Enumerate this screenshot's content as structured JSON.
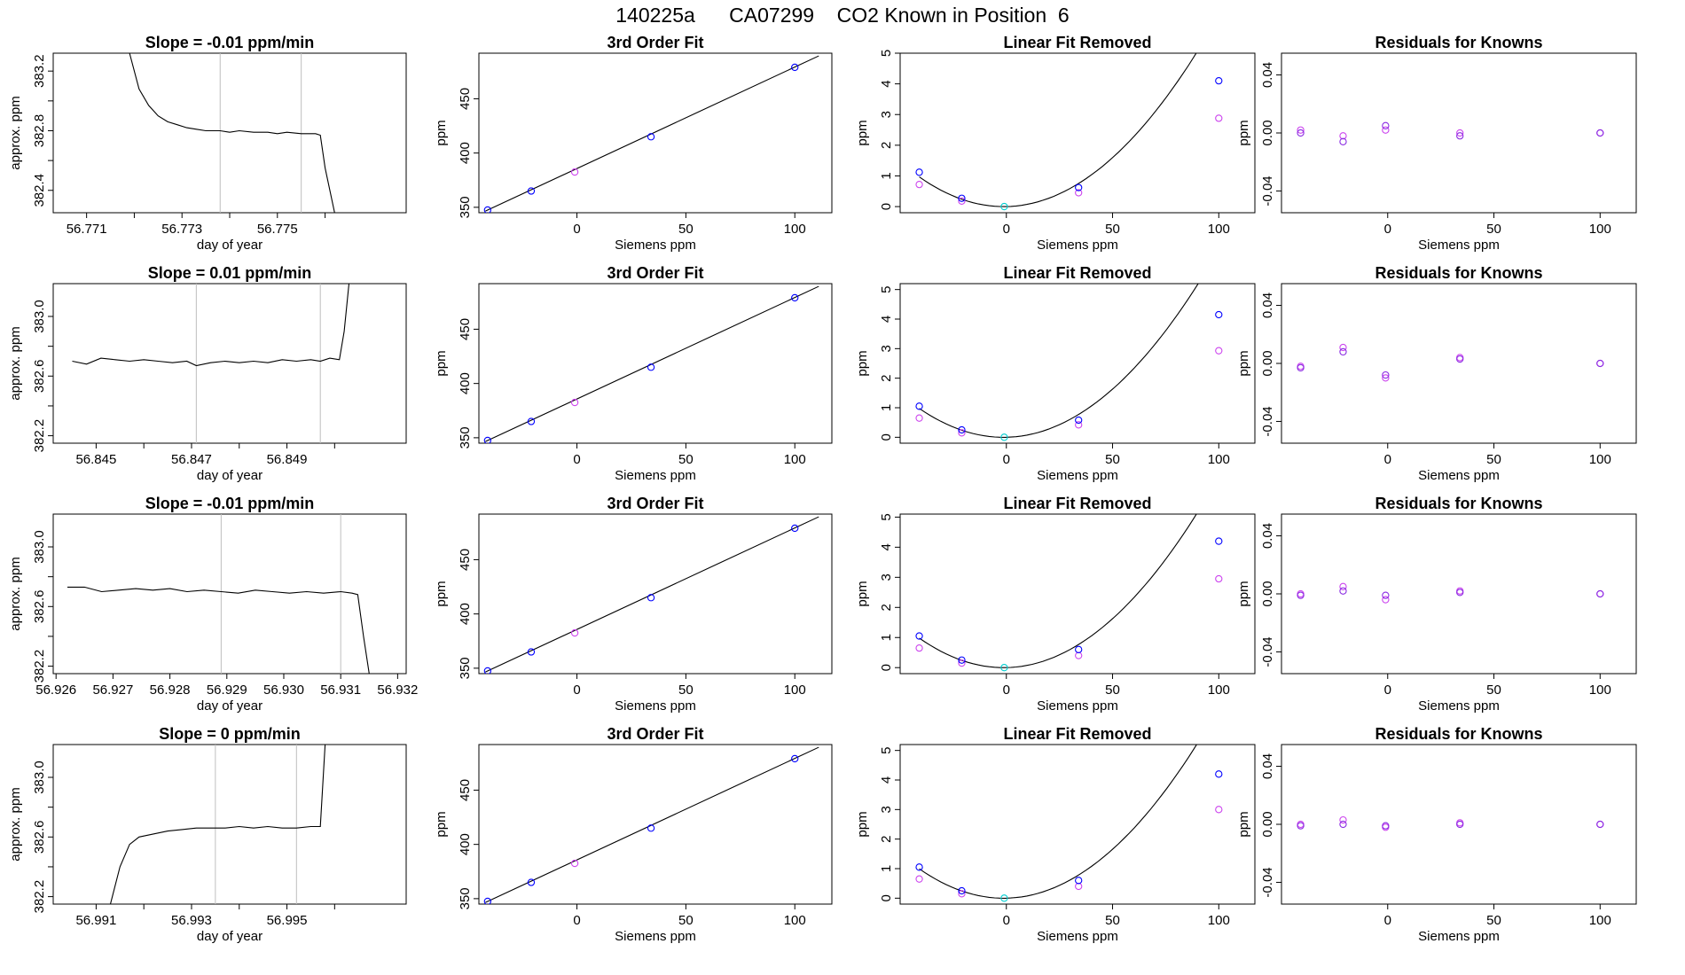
{
  "page": {
    "title_run": "140225a",
    "title_instrument": "CA07299",
    "title_desc": "CO2 Known in Position  6"
  },
  "colors": {
    "trace": "#000000",
    "vline": "#bebebe",
    "blue_point": "#0000ff",
    "violet_point": "#cc44ee",
    "purple_point": "#8a2be2",
    "cyan_point": "#00ced1"
  },
  "chart_data": [
    {
      "type": "line",
      "panel": "trace",
      "row": 0,
      "title": "Slope =  -0.01  ppm/min",
      "xlabel": "day of year",
      "ylabel": "approx. ppm",
      "xlim": [
        56.7703,
        56.7777
      ],
      "ylim": [
        382.25,
        383.32
      ],
      "xticks": [
        56.771,
        56.773,
        56.775
      ],
      "xtick_labels": [
        "56.771",
        "56.773",
        "56.775"
      ],
      "xticks_unlabeled": [
        56.772,
        56.774,
        56.776
      ],
      "yticks": [
        382.4,
        382.8,
        383.2
      ],
      "ytick_labels": [
        "382.4",
        "382.8",
        "383.2"
      ],
      "yticks_unlabeled": [
        382.6,
        383.0
      ],
      "vlines": [
        56.7738,
        56.7755
      ],
      "x": [
        56.7719,
        56.7721,
        56.7723,
        56.7725,
        56.7727,
        56.7729,
        56.7731,
        56.7733,
        56.7735,
        56.7738,
        56.774,
        56.7742,
        56.7745,
        56.7748,
        56.775,
        56.7752,
        56.7755,
        56.7757,
        56.7758,
        56.7759,
        56.776,
        56.7762
      ],
      "y": [
        383.32,
        383.08,
        382.97,
        382.9,
        382.86,
        382.84,
        382.82,
        382.81,
        382.8,
        382.8,
        382.79,
        382.8,
        382.79,
        382.79,
        382.78,
        382.79,
        382.78,
        382.78,
        382.78,
        382.77,
        382.55,
        382.25
      ]
    },
    {
      "type": "scatter",
      "panel": "fit3",
      "row": 0,
      "title": "3rd Order Fit",
      "xlabel": "Siemens ppm",
      "ylabel": "ppm",
      "xlim": [
        -45,
        117
      ],
      "ylim": [
        345,
        492
      ],
      "xticks": [
        0,
        50,
        100
      ],
      "yticks": [
        350,
        400,
        450
      ],
      "curve": {
        "type": "line",
        "x0": -42,
        "y0": 346.5,
        "x1": 111,
        "y1": 489.5
      },
      "blue_points": {
        "x": [
          -41,
          -21,
          34,
          100
        ],
        "y": [
          347.5,
          365,
          415,
          479
        ]
      },
      "violet_points": {
        "x": [
          -1
        ],
        "y": [
          382.5
        ]
      }
    },
    {
      "type": "scatter",
      "panel": "linear_removed",
      "row": 0,
      "title": "Linear Fit Removed",
      "xlabel": "Siemens ppm",
      "ylabel": "ppm",
      "xlim": [
        -50,
        117
      ],
      "ylim": [
        -0.2,
        5
      ],
      "xticks": [
        0,
        50,
        100
      ],
      "yticks": [
        0,
        1,
        2,
        3,
        4,
        5
      ],
      "curve": {
        "a": 0.00061,
        "b": 0.0014,
        "c": 0.0,
        "x0": -41,
        "x1": 111
      },
      "blue_points": {
        "x": [
          -41,
          -21,
          34,
          100
        ],
        "y": [
          1.12,
          0.27,
          0.62,
          4.1
        ]
      },
      "violet_points": {
        "x": [
          -41,
          -21,
          34,
          100
        ],
        "y": [
          0.72,
          0.18,
          0.45,
          2.88
        ]
      },
      "cyan_points": {
        "x": [
          -1
        ],
        "y": [
          0.0
        ]
      }
    },
    {
      "type": "scatter",
      "panel": "residuals",
      "row": 0,
      "title": "Residuals for Knowns",
      "xlabel": "Siemens ppm",
      "ylabel": "ppm",
      "xlim": [
        -50,
        117
      ],
      "ylim": [
        -0.055,
        0.055
      ],
      "xticks": [
        0,
        50,
        100
      ],
      "yticks": [
        -0.04,
        0.0,
        0.04
      ],
      "ytick_labels": [
        "-0.04",
        "0.00",
        "0.04"
      ],
      "purple_points": {
        "x": [
          -41,
          -21,
          -1,
          34,
          100
        ],
        "y": [
          0.0,
          -0.006,
          0.005,
          -0.002,
          0.0
        ]
      },
      "violet_points": {
        "x": [
          -41,
          -21,
          -1,
          34,
          100
        ],
        "y": [
          0.002,
          -0.002,
          0.002,
          0.0,
          0.0
        ]
      }
    },
    {
      "type": "line",
      "panel": "trace",
      "row": 1,
      "title": "Slope =  0.01  ppm/min",
      "xlabel": "day of year",
      "ylabel": "approx. ppm",
      "xlim": [
        56.8441,
        56.8515
      ],
      "ylim": [
        382.15,
        383.22
      ],
      "xticks": [
        56.845,
        56.847,
        56.849
      ],
      "xtick_labels": [
        "56.845",
        "56.847",
        "56.849"
      ],
      "xticks_unlabeled": [
        56.846,
        56.848,
        56.85
      ],
      "yticks": [
        382.2,
        382.6,
        383.0
      ],
      "ytick_labels": [
        "382.2",
        "382.6",
        "383.0"
      ],
      "yticks_unlabeled": [
        382.4,
        382.8
      ],
      "vlines": [
        56.8471,
        56.8497
      ],
      "x": [
        56.8445,
        56.8448,
        56.8451,
        56.8454,
        56.8457,
        56.846,
        56.8463,
        56.8466,
        56.8469,
        56.8471,
        56.8474,
        56.8477,
        56.848,
        56.8483,
        56.8486,
        56.8489,
        56.8492,
        56.8495,
        56.8497,
        56.8499,
        56.8501,
        56.8502,
        56.8503
      ],
      "y": [
        382.7,
        382.68,
        382.72,
        382.71,
        382.7,
        382.71,
        382.7,
        382.69,
        382.7,
        382.67,
        382.69,
        382.7,
        382.69,
        382.7,
        382.69,
        382.71,
        382.7,
        382.71,
        382.7,
        382.72,
        382.71,
        382.9,
        383.22
      ]
    },
    {
      "type": "scatter",
      "panel": "fit3",
      "row": 1,
      "title": "3rd Order Fit",
      "xlabel": "Siemens ppm",
      "ylabel": "ppm",
      "xlim": [
        -45,
        117
      ],
      "ylim": [
        345,
        492
      ],
      "xticks": [
        0,
        50,
        100
      ],
      "yticks": [
        350,
        400,
        450
      ],
      "curve": {
        "type": "line",
        "x0": -42,
        "y0": 346.5,
        "x1": 111,
        "y1": 489.5
      },
      "blue_points": {
        "x": [
          -41,
          -21,
          34,
          100
        ],
        "y": [
          347.5,
          365,
          415,
          479
        ]
      },
      "violet_points": {
        "x": [
          -1
        ],
        "y": [
          382.5
        ]
      }
    },
    {
      "type": "scatter",
      "panel": "linear_removed",
      "row": 1,
      "title": "Linear Fit Removed",
      "xlabel": "Siemens ppm",
      "ylabel": "ppm",
      "xlim": [
        -50,
        117
      ],
      "ylim": [
        -0.2,
        5.2
      ],
      "xticks": [
        0,
        50,
        100
      ],
      "yticks": [
        0,
        1,
        2,
        3,
        4,
        5
      ],
      "curve": {
        "a": 0.00062,
        "b": 0.0016,
        "c": 0.0,
        "x0": -41,
        "x1": 111
      },
      "blue_points": {
        "x": [
          -41,
          -21,
          34,
          100
        ],
        "y": [
          1.05,
          0.25,
          0.58,
          4.15
        ]
      },
      "violet_points": {
        "x": [
          -41,
          -21,
          34,
          100
        ],
        "y": [
          0.65,
          0.15,
          0.42,
          2.93
        ]
      },
      "cyan_points": {
        "x": [
          -1
        ],
        "y": [
          0.0
        ]
      }
    },
    {
      "type": "scatter",
      "panel": "residuals",
      "row": 1,
      "title": "Residuals for Knowns",
      "xlabel": "Siemens ppm",
      "ylabel": "ppm",
      "xlim": [
        -50,
        117
      ],
      "ylim": [
        -0.055,
        0.055
      ],
      "xticks": [
        0,
        50,
        100
      ],
      "yticks": [
        -0.04,
        0.0,
        0.04
      ],
      "ytick_labels": [
        "-0.04",
        "0.00",
        "0.04"
      ],
      "purple_points": {
        "x": [
          -41,
          -21,
          -1,
          34,
          100
        ],
        "y": [
          -0.003,
          0.008,
          -0.008,
          0.003,
          0.0
        ]
      },
      "violet_points": {
        "x": [
          -41,
          -21,
          -1,
          34,
          100
        ],
        "y": [
          -0.002,
          0.011,
          -0.01,
          0.004,
          0.0
        ]
      }
    },
    {
      "type": "line",
      "panel": "trace",
      "row": 2,
      "title": "Slope =  -0.01  ppm/min",
      "xlabel": "day of year",
      "ylabel": "approx. ppm",
      "xlim": [
        56.92595,
        56.93215
      ],
      "ylim": [
        382.15,
        383.22
      ],
      "xticks": [
        56.926,
        56.927,
        56.928,
        56.929,
        56.93,
        56.931,
        56.932
      ],
      "xtick_labels": [
        "56.926",
        "56.927",
        "56.928",
        "56.929",
        "56.930",
        "56.931",
        "56.932"
      ],
      "xticks_unlabeled": [],
      "yticks": [
        382.2,
        382.6,
        383.0
      ],
      "ytick_labels": [
        "382.2",
        "382.6",
        "383.0"
      ],
      "yticks_unlabeled": [
        382.4,
        382.8
      ],
      "vlines": [
        56.9289,
        56.931
      ],
      "x": [
        56.9262,
        56.9265,
        56.9268,
        56.9271,
        56.9274,
        56.9277,
        56.928,
        56.9283,
        56.9286,
        56.9289,
        56.9292,
        56.9295,
        56.9298,
        56.9301,
        56.9304,
        56.9307,
        56.931,
        56.9312,
        56.9313,
        56.9314,
        56.9315
      ],
      "y": [
        382.73,
        382.73,
        382.7,
        382.71,
        382.72,
        382.71,
        382.72,
        382.7,
        382.71,
        382.7,
        382.69,
        382.71,
        382.7,
        382.69,
        382.7,
        382.69,
        382.7,
        382.69,
        382.68,
        382.4,
        382.15
      ]
    },
    {
      "type": "scatter",
      "panel": "fit3",
      "row": 2,
      "title": "3rd Order Fit",
      "xlabel": "Siemens ppm",
      "ylabel": "ppm",
      "xlim": [
        -45,
        117
      ],
      "ylim": [
        345,
        492
      ],
      "xticks": [
        0,
        50,
        100
      ],
      "yticks": [
        350,
        400,
        450
      ],
      "curve": {
        "type": "line",
        "x0": -42,
        "y0": 346.5,
        "x1": 111,
        "y1": 489.5
      },
      "blue_points": {
        "x": [
          -41,
          -21,
          34,
          100
        ],
        "y": [
          347.5,
          365,
          415,
          479
        ]
      },
      "violet_points": {
        "x": [
          -1
        ],
        "y": [
          382.5
        ]
      }
    },
    {
      "type": "scatter",
      "panel": "linear_removed",
      "row": 2,
      "title": "Linear Fit Removed",
      "xlabel": "Siemens ppm",
      "ylabel": "ppm",
      "xlim": [
        -50,
        117
      ],
      "ylim": [
        -0.2,
        5.1
      ],
      "xticks": [
        0,
        50,
        100
      ],
      "yticks": [
        0,
        1,
        2,
        3,
        4,
        5
      ],
      "curve": {
        "a": 0.00062,
        "b": 0.0015,
        "c": 0.0,
        "x0": -41,
        "x1": 111
      },
      "blue_points": {
        "x": [
          -41,
          -21,
          34,
          100
        ],
        "y": [
          1.05,
          0.25,
          0.6,
          4.2
        ]
      },
      "violet_points": {
        "x": [
          -41,
          -21,
          34,
          100
        ],
        "y": [
          0.65,
          0.15,
          0.4,
          2.95
        ]
      },
      "cyan_points": {
        "x": [
          -1
        ],
        "y": [
          0.0
        ]
      }
    },
    {
      "type": "scatter",
      "panel": "residuals",
      "row": 2,
      "title": "Residuals for Knowns",
      "xlabel": "Siemens ppm",
      "ylabel": "ppm",
      "xlim": [
        -50,
        117
      ],
      "ylim": [
        -0.055,
        0.055
      ],
      "xticks": [
        0,
        50,
        100
      ],
      "yticks": [
        -0.04,
        0.0,
        0.04
      ],
      "ytick_labels": [
        "-0.04",
        "0.00",
        "0.04"
      ],
      "purple_points": {
        "x": [
          -41,
          -21,
          -1,
          34,
          100
        ],
        "y": [
          -0.001,
          0.002,
          -0.001,
          0.001,
          0.0
        ]
      },
      "violet_points": {
        "x": [
          -41,
          -21,
          -1,
          34,
          100
        ],
        "y": [
          0.0,
          0.005,
          -0.004,
          0.002,
          0.0
        ]
      }
    },
    {
      "type": "line",
      "panel": "trace",
      "row": 3,
      "title": "Slope =  0  ppm/min",
      "xlabel": "day of year",
      "ylabel": "approx. ppm",
      "xlim": [
        56.9901,
        56.9975
      ],
      "ylim": [
        382.15,
        383.22
      ],
      "xticks": [
        56.991,
        56.993,
        56.995
      ],
      "xtick_labels": [
        "56.991",
        "56.993",
        "56.995"
      ],
      "xticks_unlabeled": [
        56.992,
        56.994,
        56.996
      ],
      "yticks": [
        382.2,
        382.6,
        383.0
      ],
      "ytick_labels": [
        "382.2",
        "382.6",
        "383.0"
      ],
      "yticks_unlabeled": [
        382.4,
        382.8
      ],
      "vlines": [
        56.9935,
        56.9952
      ],
      "x": [
        56.9913,
        56.9915,
        56.9917,
        56.9919,
        56.9922,
        56.9925,
        56.9928,
        56.9931,
        56.9934,
        56.9937,
        56.994,
        56.9943,
        56.9946,
        56.9949,
        56.9952,
        56.9955,
        56.9957,
        56.9958
      ],
      "y": [
        382.15,
        382.4,
        382.55,
        382.6,
        382.62,
        382.64,
        382.65,
        382.66,
        382.66,
        382.66,
        382.67,
        382.66,
        382.67,
        382.66,
        382.66,
        382.67,
        382.67,
        383.22
      ]
    },
    {
      "type": "scatter",
      "panel": "fit3",
      "row": 3,
      "title": "3rd Order Fit",
      "xlabel": "Siemens ppm",
      "ylabel": "ppm",
      "xlim": [
        -45,
        117
      ],
      "ylim": [
        345,
        492
      ],
      "xticks": [
        0,
        50,
        100
      ],
      "yticks": [
        350,
        400,
        450
      ],
      "curve": {
        "type": "line",
        "x0": -42,
        "y0": 346.5,
        "x1": 111,
        "y1": 489.5
      },
      "blue_points": {
        "x": [
          -41,
          -21,
          34,
          100
        ],
        "y": [
          347.5,
          365,
          415,
          479
        ]
      },
      "violet_points": {
        "x": [
          -1
        ],
        "y": [
          382.5
        ]
      }
    },
    {
      "type": "scatter",
      "panel": "linear_removed",
      "row": 3,
      "title": "Linear Fit Removed",
      "xlabel": "Siemens ppm",
      "ylabel": "ppm",
      "xlim": [
        -50,
        117
      ],
      "ylim": [
        -0.2,
        5.2
      ],
      "xticks": [
        0,
        50,
        100
      ],
      "yticks": [
        0,
        1,
        2,
        3,
        4,
        5
      ],
      "curve": {
        "a": 0.00063,
        "b": 0.0016,
        "c": 0.0,
        "x0": -41,
        "x1": 111
      },
      "blue_points": {
        "x": [
          -41,
          -21,
          34,
          100
        ],
        "y": [
          1.05,
          0.25,
          0.6,
          4.2
        ]
      },
      "violet_points": {
        "x": [
          -41,
          -21,
          34,
          100
        ],
        "y": [
          0.65,
          0.15,
          0.4,
          3.0
        ]
      },
      "cyan_points": {
        "x": [
          -1
        ],
        "y": [
          0.0
        ]
      }
    },
    {
      "type": "scatter",
      "panel": "residuals",
      "row": 3,
      "title": "Residuals for Knowns",
      "xlabel": "Siemens ppm",
      "ylabel": "ppm",
      "xlim": [
        -50,
        117
      ],
      "ylim": [
        -0.055,
        0.055
      ],
      "xticks": [
        0,
        50,
        100
      ],
      "yticks": [
        -0.04,
        0.0,
        0.04
      ],
      "ytick_labels": [
        "-0.04",
        "0.00",
        "0.04"
      ],
      "purple_points": {
        "x": [
          -41,
          -21,
          -1,
          34,
          100
        ],
        "y": [
          -0.001,
          0.0,
          -0.001,
          0.0,
          0.0
        ]
      },
      "violet_points": {
        "x": [
          -41,
          -21,
          -1,
          34,
          100
        ],
        "y": [
          0.0,
          0.003,
          -0.002,
          0.001,
          0.0
        ]
      }
    }
  ]
}
